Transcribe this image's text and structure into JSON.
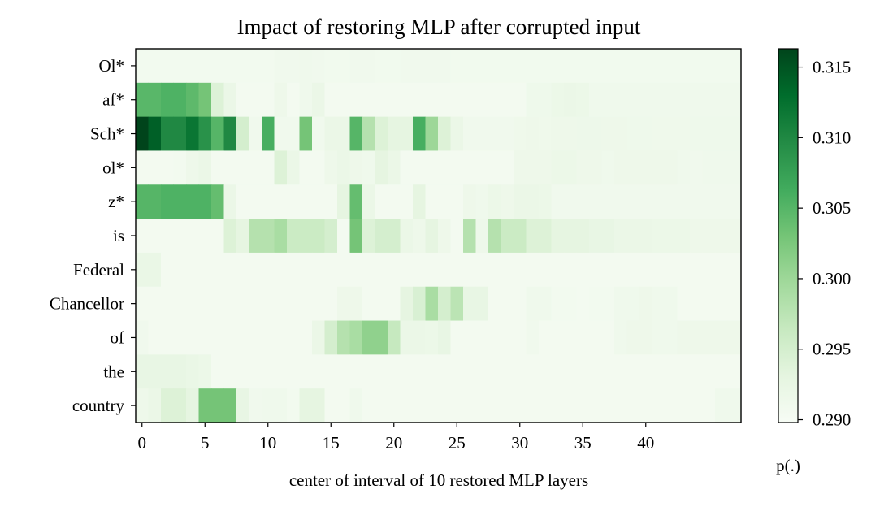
{
  "chart_data": {
    "type": "heatmap",
    "title": "Impact of restoring MLP after corrupted input",
    "xlabel": "center of interval of 10 restored MLP layers",
    "ylabel": "",
    "x_ticks": [
      0,
      5,
      10,
      15,
      20,
      25,
      30,
      35,
      40
    ],
    "x_range": [
      0,
      47
    ],
    "rows": [
      "Ol*",
      "af*",
      "Sch*",
      "ol*",
      "z*",
      "is",
      "Federal",
      "Chancellor",
      "of",
      "the",
      "country"
    ],
    "colorbar": {
      "label": "p(.)",
      "min": 0.2898,
      "max": 0.3163,
      "ticks": [
        "0.290",
        "0.295",
        "0.300",
        "0.305",
        "0.310",
        "0.315"
      ],
      "colormap": "Greens"
    },
    "values": [
      [
        0.2908,
        0.2908,
        0.2908,
        0.2908,
        0.2908,
        0.2908,
        0.2908,
        0.2908,
        0.2908,
        0.2908,
        0.2908,
        0.291,
        0.291,
        0.2912,
        0.291,
        0.2909,
        0.2909,
        0.291,
        0.291,
        0.2909,
        0.2909,
        0.291,
        0.2911,
        0.291,
        0.291,
        0.2909,
        0.2909,
        0.2909,
        0.2909,
        0.2909,
        0.2909,
        0.2909,
        0.2909,
        0.2909,
        0.2909,
        0.2909,
        0.2909,
        0.2909,
        0.2909,
        0.2909,
        0.2909,
        0.2909,
        0.2909,
        0.2909,
        0.2909,
        0.2909,
        0.2909,
        0.2909
      ],
      [
        0.3048,
        0.3048,
        0.3055,
        0.3055,
        0.3045,
        0.303,
        0.294,
        0.292,
        0.2906,
        0.2906,
        0.2906,
        0.2915,
        0.2906,
        0.2912,
        0.292,
        0.2906,
        0.2906,
        0.2906,
        0.2906,
        0.2906,
        0.2906,
        0.2906,
        0.2906,
        0.2906,
        0.2906,
        0.2906,
        0.2906,
        0.2906,
        0.2906,
        0.2906,
        0.2906,
        0.2914,
        0.2914,
        0.2918,
        0.292,
        0.2918,
        0.2912,
        0.2912,
        0.2912,
        0.2912,
        0.2912,
        0.2912,
        0.2912,
        0.2912,
        0.2912,
        0.2912,
        0.2912,
        0.2912
      ],
      [
        0.3163,
        0.314,
        0.31,
        0.31,
        0.312,
        0.309,
        0.305,
        0.31,
        0.295,
        0.291,
        0.306,
        0.291,
        0.291,
        0.303,
        0.291,
        0.292,
        0.292,
        0.305,
        0.298,
        0.294,
        0.293,
        0.293,
        0.306,
        0.3,
        0.294,
        0.292,
        0.291,
        0.291,
        0.291,
        0.291,
        0.2913,
        0.2915,
        0.2913,
        0.2915,
        0.2915,
        0.2916,
        0.2916,
        0.2915,
        0.2915,
        0.2914,
        0.2914,
        0.2913,
        0.2913,
        0.2913,
        0.2914,
        0.2914,
        0.2914,
        0.2914
      ],
      [
        0.2906,
        0.2906,
        0.2906,
        0.2908,
        0.2915,
        0.292,
        0.2906,
        0.2906,
        0.2906,
        0.2906,
        0.2906,
        0.294,
        0.292,
        0.2906,
        0.2906,
        0.2915,
        0.292,
        0.2915,
        0.2912,
        0.293,
        0.292,
        0.2906,
        0.2906,
        0.2906,
        0.2906,
        0.2906,
        0.2906,
        0.2906,
        0.2906,
        0.2906,
        0.2915,
        0.2915,
        0.2915,
        0.2918,
        0.2918,
        0.2915,
        0.2915,
        0.2912,
        0.2915,
        0.2915,
        0.2915,
        0.2915,
        0.2915,
        0.2912,
        0.291,
        0.2912,
        0.2912,
        0.2912
      ],
      [
        0.305,
        0.305,
        0.3055,
        0.3055,
        0.3055,
        0.3055,
        0.304,
        0.292,
        0.2906,
        0.2906,
        0.2906,
        0.2906,
        0.2906,
        0.2906,
        0.2906,
        0.2906,
        0.293,
        0.304,
        0.292,
        0.2906,
        0.2906,
        0.2906,
        0.293,
        0.2906,
        0.2906,
        0.2906,
        0.2915,
        0.2912,
        0.2918,
        0.2915,
        0.292,
        0.292,
        0.2918,
        0.291,
        0.291,
        0.291,
        0.291,
        0.291,
        0.291,
        0.291,
        0.291,
        0.291,
        0.291,
        0.291,
        0.291,
        0.291,
        0.291,
        0.291
      ],
      [
        0.2906,
        0.2906,
        0.2906,
        0.2906,
        0.2906,
        0.2906,
        0.2906,
        0.294,
        0.293,
        0.298,
        0.298,
        0.299,
        0.296,
        0.296,
        0.296,
        0.295,
        0.2906,
        0.303,
        0.294,
        0.295,
        0.295,
        0.292,
        0.2915,
        0.293,
        0.2915,
        0.2906,
        0.298,
        0.2915,
        0.298,
        0.296,
        0.296,
        0.294,
        0.294,
        0.293,
        0.293,
        0.293,
        0.2925,
        0.2925,
        0.292,
        0.292,
        0.292,
        0.2918,
        0.2918,
        0.2918,
        0.2915,
        0.2915,
        0.2915,
        0.2915
      ],
      [
        0.2922,
        0.2922,
        0.2906,
        0.2906,
        0.2906,
        0.2906,
        0.2906,
        0.2906,
        0.2906,
        0.2906,
        0.2906,
        0.2906,
        0.2906,
        0.2906,
        0.2906,
        0.2906,
        0.2906,
        0.2906,
        0.2906,
        0.2906,
        0.2906,
        0.2906,
        0.2906,
        0.2906,
        0.2906,
        0.2906,
        0.2906,
        0.2906,
        0.2906,
        0.2906,
        0.2906,
        0.2906,
        0.2906,
        0.2906,
        0.2906,
        0.2906,
        0.2906,
        0.2906,
        0.2906,
        0.2906,
        0.2906,
        0.2906,
        0.2906,
        0.2906,
        0.2906,
        0.2906,
        0.2906,
        0.2906
      ],
      [
        0.2906,
        0.2906,
        0.2906,
        0.2906,
        0.2906,
        0.2906,
        0.2906,
        0.2906,
        0.2906,
        0.2906,
        0.2906,
        0.2906,
        0.2906,
        0.2906,
        0.2906,
        0.2906,
        0.2915,
        0.2915,
        0.2906,
        0.2906,
        0.2906,
        0.293,
        0.2945,
        0.299,
        0.295,
        0.2975,
        0.2925,
        0.2925,
        0.2906,
        0.2906,
        0.2906,
        0.2912,
        0.2912,
        0.2908,
        0.2908,
        0.2906,
        0.2908,
        0.2908,
        0.2912,
        0.2912,
        0.2915,
        0.2912,
        0.2912,
        0.2906,
        0.2906,
        0.2906,
        0.2906,
        0.2906
      ],
      [
        0.291,
        0.2906,
        0.2906,
        0.2906,
        0.2906,
        0.2906,
        0.2906,
        0.2906,
        0.2906,
        0.2906,
        0.2906,
        0.2906,
        0.2906,
        0.2906,
        0.292,
        0.295,
        0.298,
        0.299,
        0.301,
        0.301,
        0.2965,
        0.292,
        0.292,
        0.2918,
        0.2925,
        0.2906,
        0.2906,
        0.2906,
        0.2906,
        0.2906,
        0.2906,
        0.291,
        0.2906,
        0.2906,
        0.2906,
        0.2906,
        0.2906,
        0.2906,
        0.2912,
        0.2915,
        0.2915,
        0.2912,
        0.2912,
        0.2915,
        0.2915,
        0.2915,
        0.2915,
        0.2915
      ],
      [
        0.2925,
        0.2925,
        0.2925,
        0.2925,
        0.2922,
        0.2918,
        0.2906,
        0.2906,
        0.2906,
        0.2906,
        0.2906,
        0.2906,
        0.2906,
        0.2906,
        0.2906,
        0.2906,
        0.2906,
        0.2906,
        0.2906,
        0.2906,
        0.2906,
        0.2906,
        0.2906,
        0.2906,
        0.2906,
        0.2906,
        0.2906,
        0.2906,
        0.2906,
        0.2906,
        0.2906,
        0.2906,
        0.2906,
        0.2906,
        0.2906,
        0.2906,
        0.2906,
        0.2906,
        0.2906,
        0.2906,
        0.2906,
        0.2906,
        0.2906,
        0.2906,
        0.2906,
        0.2906,
        0.2906,
        0.2906
      ],
      [
        0.2915,
        0.292,
        0.294,
        0.294,
        0.293,
        0.303,
        0.303,
        0.303,
        0.2925,
        0.291,
        0.2912,
        0.2912,
        0.2908,
        0.293,
        0.293,
        0.2906,
        0.2906,
        0.2912,
        0.2906,
        0.2906,
        0.2906,
        0.2906,
        0.2906,
        0.2906,
        0.2906,
        0.2906,
        0.2906,
        0.2906,
        0.2906,
        0.2906,
        0.2906,
        0.2906,
        0.2906,
        0.2906,
        0.2906,
        0.2906,
        0.2906,
        0.2906,
        0.2906,
        0.2906,
        0.2906,
        0.2906,
        0.2906,
        0.2906,
        0.2906,
        0.2906,
        0.2912,
        0.2912
      ]
    ]
  }
}
